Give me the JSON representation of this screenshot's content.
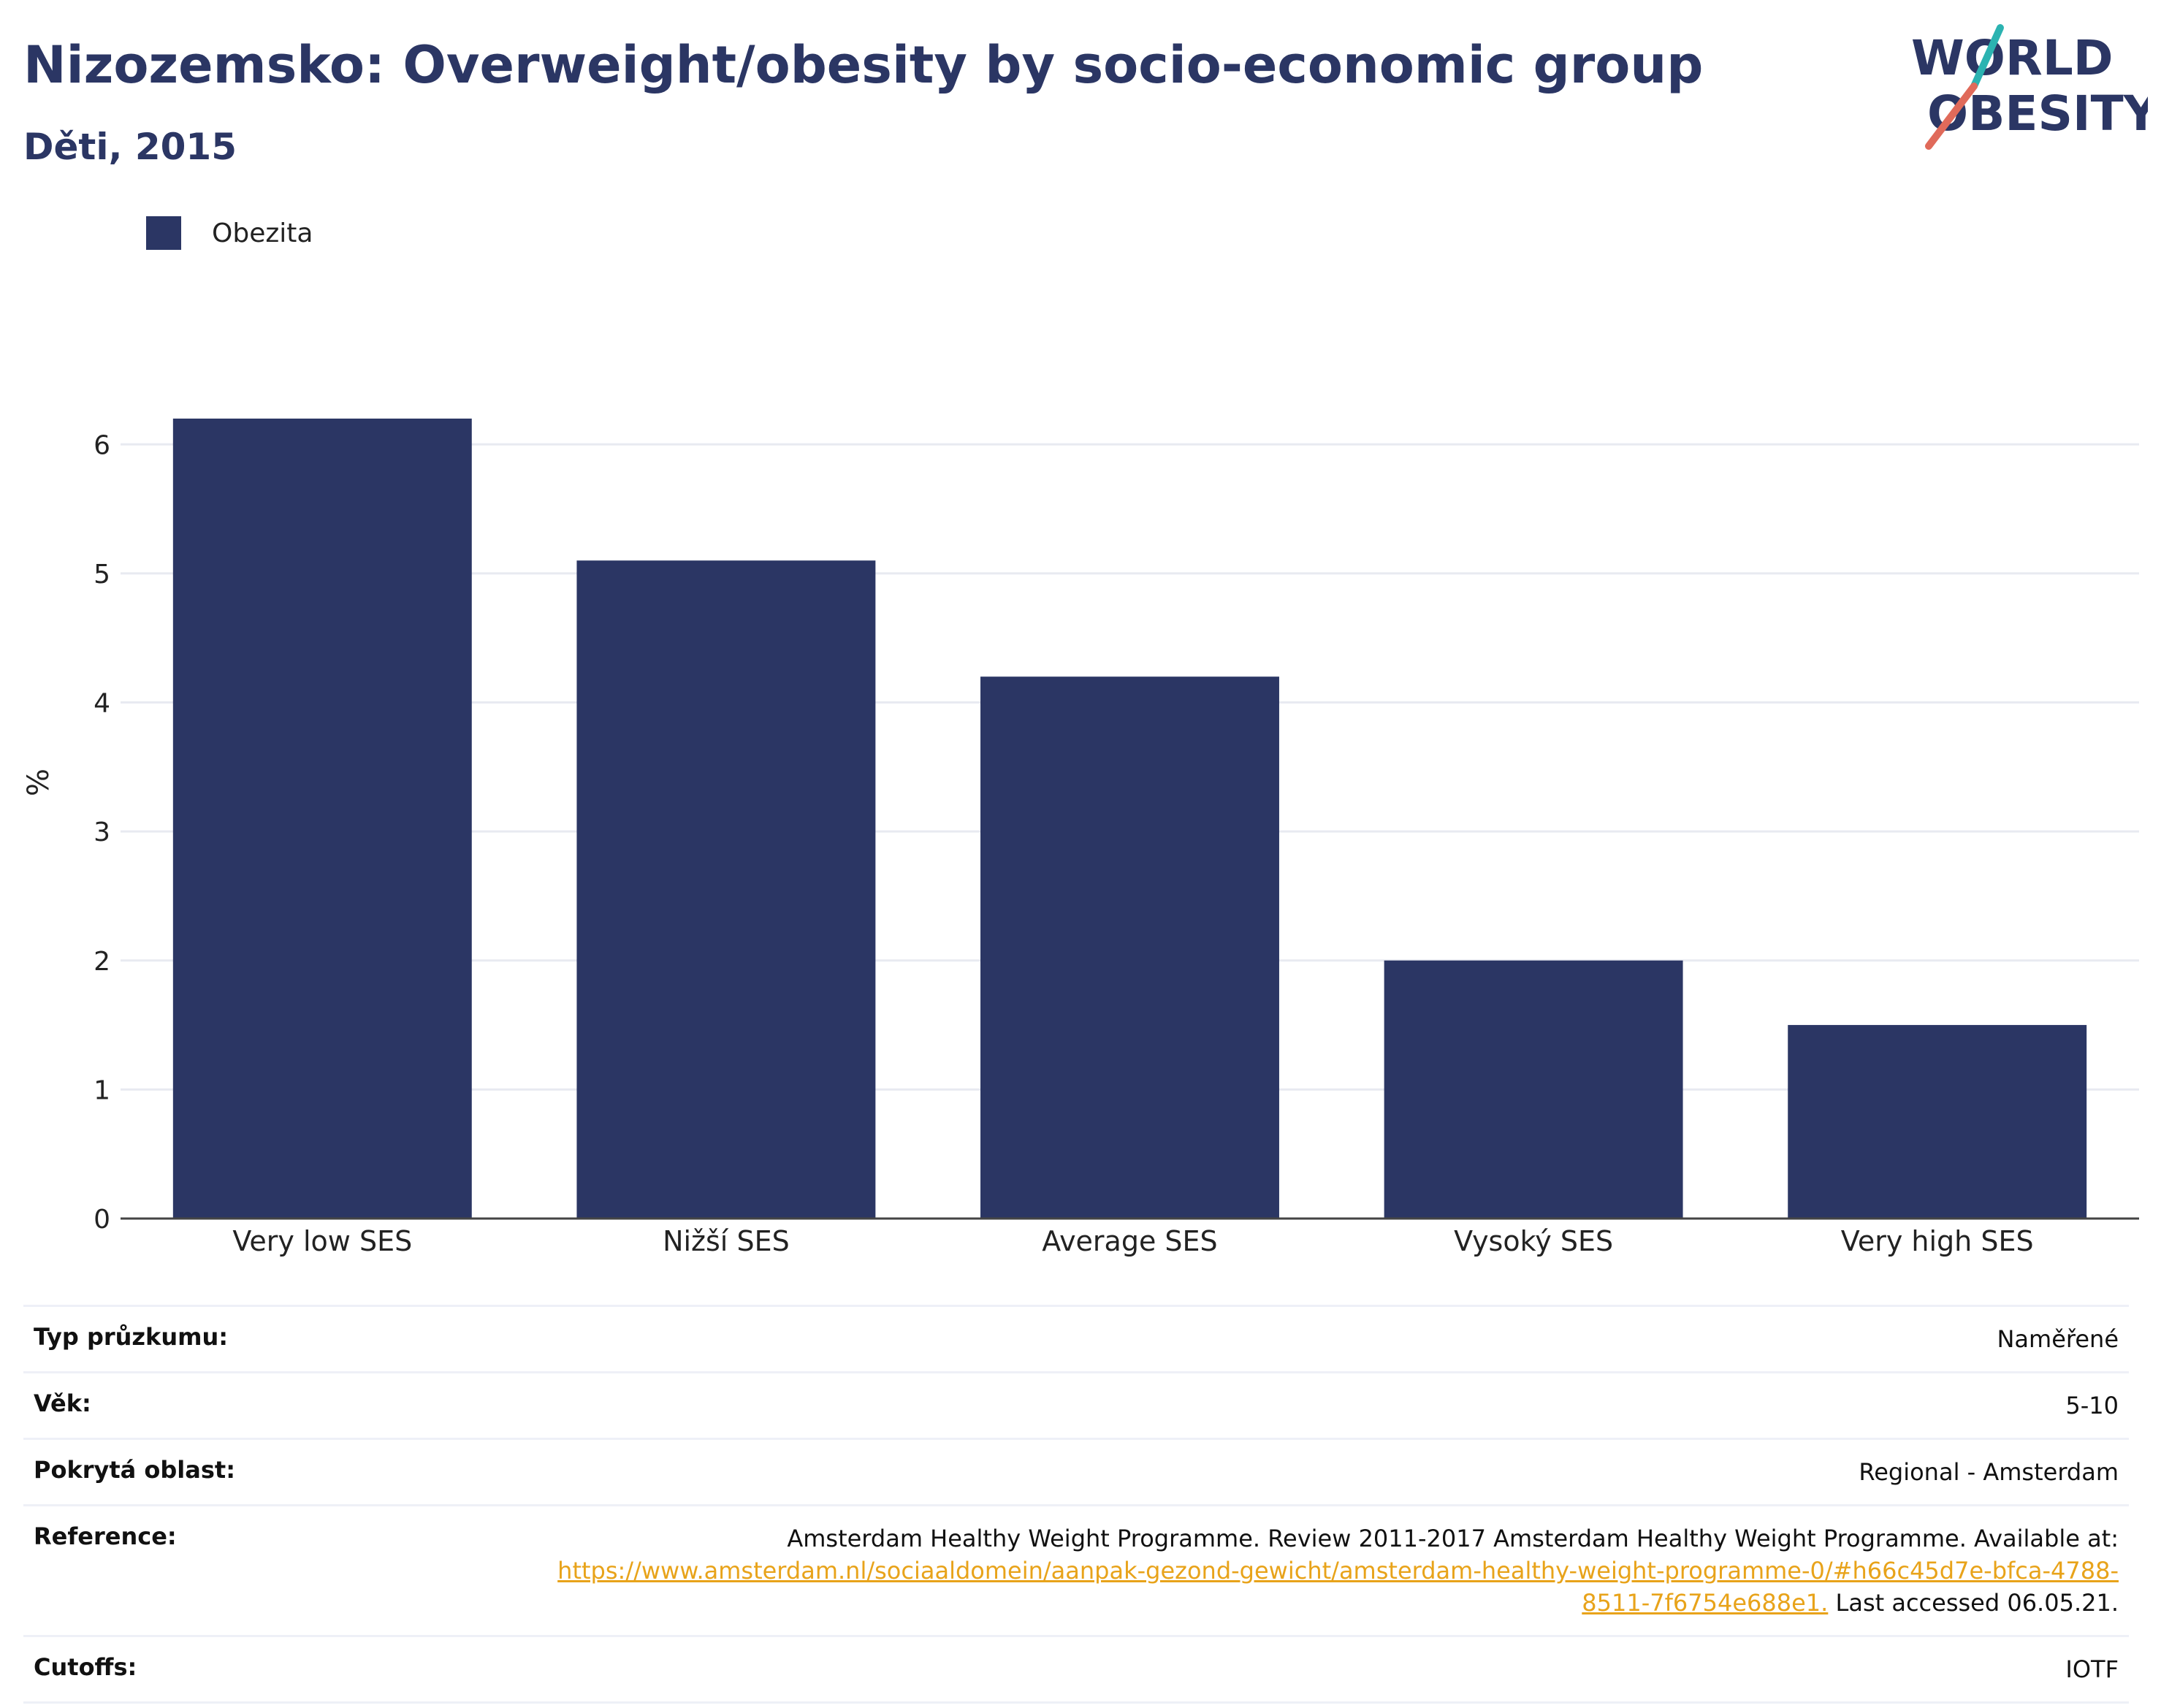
{
  "header": {
    "title": "Nizozemsko: Overweight/obesity by socio-economic group",
    "subtitle": "Děti, 2015"
  },
  "logo": {
    "line1": "WORLD",
    "line2": "OBESITY",
    "accent_teal": "#2bb3b1",
    "accent_red": "#e06a5a"
  },
  "legend": {
    "label": "Obezita",
    "color": "#2b3664"
  },
  "chart_data": {
    "type": "bar",
    "categories": [
      "Very low SES",
      "Nižší SES",
      "Average SES",
      "Vysoký SES",
      "Very high SES"
    ],
    "series": [
      {
        "name": "Obezita",
        "values": [
          6.2,
          5.1,
          4.2,
          2.0,
          1.5
        ]
      }
    ],
    "ylabel": "%",
    "ylim": [
      0,
      6.5
    ],
    "yticks": [
      0,
      1,
      2,
      3,
      4,
      5,
      6
    ],
    "grid": true,
    "legend_position": "top-left",
    "bar_color": "#2b3664"
  },
  "info": {
    "survey_type_label": "Typ průzkumu:",
    "survey_type_value": "Naměřené",
    "age_label": "Věk:",
    "age_value": "5-10",
    "coverage_label": "Pokrytá oblast:",
    "coverage_value": "Regional - Amsterdam",
    "reference_label": "Reference:",
    "reference_text": "Amsterdam Healthy Weight Programme. Review 2011-2017 Amsterdam Healthy Weight Programme. Available at:",
    "reference_link": "https://www.amsterdam.nl/sociaaldomein/aanpak-gezond-gewicht/amsterdam-healthy-weight-programme-0/#h66c45d7e-bfca-4788-8511-7f6754e688e1.",
    "reference_suffix": "Last accessed 06.05.21.",
    "cutoffs_label": "Cutoffs:",
    "cutoffs_value": "IOTF"
  }
}
